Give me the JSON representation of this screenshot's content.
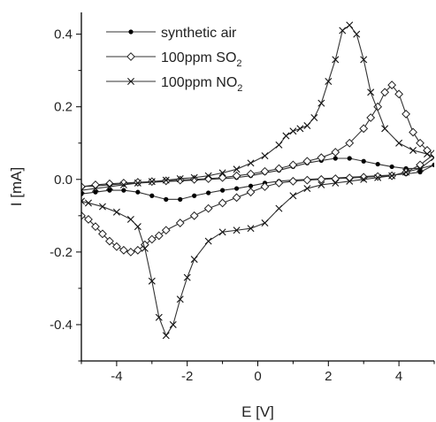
{
  "chart_data": {
    "type": "line",
    "xlabel": "E [V]",
    "ylabel": "I [mA]",
    "xlim": [
      -5,
      5
    ],
    "ylim": [
      -0.5,
      0.46
    ],
    "xticks": [
      -4,
      -2,
      0,
      2,
      4
    ],
    "xtick_labels": [
      "-4",
      "-2",
      "0",
      "2",
      "4"
    ],
    "yticks": [
      -0.4,
      -0.2,
      0.0,
      0.2,
      0.4
    ],
    "ytick_labels": [
      "-0.4",
      "-0.2",
      "0.0",
      "0.2",
      "0.4"
    ],
    "grid": false,
    "legend_position": "top-left",
    "series": [
      {
        "name": "synthetic air",
        "name_main": "synthetic air",
        "name_sub": "",
        "marker": "filled-circle",
        "color": "#000000",
        "x": [
          -5.0,
          -4.6,
          -4.2,
          -3.8,
          -3.4,
          -3.0,
          -2.6,
          -2.2,
          -1.8,
          -1.4,
          -1.0,
          -0.6,
          -0.2,
          0.2,
          0.6,
          1.0,
          1.4,
          1.8,
          2.2,
          2.6,
          3.0,
          3.4,
          3.8,
          4.2,
          4.6,
          5.0,
          4.6,
          4.2,
          3.8,
          3.4,
          3.0,
          2.6,
          2.2,
          1.8,
          1.4,
          1.0,
          0.6,
          0.2,
          -0.2,
          -0.6,
          -1.0,
          -1.4,
          -1.8,
          -2.2,
          -2.6,
          -3.0,
          -3.4,
          -3.8,
          -4.2,
          -4.6,
          -5.0
        ],
        "y": [
          -0.02,
          -0.018,
          -0.015,
          -0.012,
          -0.01,
          -0.008,
          -0.006,
          -0.004,
          -0.002,
          0.0,
          0.002,
          0.005,
          0.01,
          0.018,
          0.025,
          0.035,
          0.045,
          0.052,
          0.058,
          0.058,
          0.05,
          0.042,
          0.035,
          0.03,
          0.03,
          0.04,
          0.02,
          0.015,
          0.012,
          0.01,
          0.008,
          0.006,
          0.004,
          0.002,
          0.0,
          -0.002,
          -0.005,
          -0.01,
          -0.018,
          -0.025,
          -0.03,
          -0.037,
          -0.045,
          -0.055,
          -0.055,
          -0.045,
          -0.035,
          -0.03,
          -0.03,
          -0.035,
          -0.04
        ]
      },
      {
        "name": "100ppm SO2",
        "name_main": "100ppm SO",
        "name_sub": "2",
        "marker": "open-diamond",
        "color": "#000000",
        "x": [
          -5.0,
          -4.6,
          -4.2,
          -3.8,
          -3.4,
          -3.0,
          -2.6,
          -2.2,
          -1.8,
          -1.4,
          -1.0,
          -0.6,
          -0.2,
          0.2,
          0.6,
          1.0,
          1.4,
          1.8,
          2.2,
          2.6,
          3.0,
          3.2,
          3.4,
          3.6,
          3.8,
          4.0,
          4.2,
          4.4,
          4.6,
          4.8,
          5.0,
          4.6,
          4.2,
          3.8,
          3.4,
          3.0,
          2.6,
          2.2,
          1.8,
          1.4,
          1.0,
          0.6,
          0.2,
          -0.2,
          -0.6,
          -1.0,
          -1.4,
          -1.8,
          -2.2,
          -2.6,
          -2.8,
          -3.0,
          -3.2,
          -3.4,
          -3.6,
          -3.8,
          -4.0,
          -4.2,
          -4.4,
          -4.6,
          -4.8,
          -5.0
        ],
        "y": [
          -0.02,
          -0.015,
          -0.012,
          -0.01,
          -0.008,
          -0.006,
          -0.004,
          -0.002,
          0.0,
          0.002,
          0.005,
          0.01,
          0.015,
          0.022,
          0.03,
          0.04,
          0.05,
          0.06,
          0.075,
          0.1,
          0.14,
          0.17,
          0.2,
          0.24,
          0.26,
          0.235,
          0.18,
          0.13,
          0.1,
          0.08,
          0.07,
          0.04,
          0.02,
          0.01,
          0.008,
          0.006,
          0.004,
          0.002,
          0.0,
          -0.002,
          -0.005,
          -0.01,
          -0.02,
          -0.035,
          -0.05,
          -0.065,
          -0.08,
          -0.1,
          -0.12,
          -0.14,
          -0.155,
          -0.165,
          -0.18,
          -0.195,
          -0.2,
          -0.195,
          -0.185,
          -0.17,
          -0.15,
          -0.13,
          -0.11,
          -0.1
        ]
      },
      {
        "name": "100ppm NO2",
        "name_main": "100ppm NO",
        "name_sub": "2",
        "marker": "x-cross",
        "color": "#000000",
        "x": [
          -5.0,
          -4.6,
          -4.2,
          -3.8,
          -3.4,
          -3.0,
          -2.6,
          -2.2,
          -1.8,
          -1.4,
          -1.0,
          -0.6,
          -0.2,
          0.2,
          0.6,
          0.8,
          1.0,
          1.2,
          1.4,
          1.6,
          1.8,
          2.0,
          2.2,
          2.4,
          2.6,
          2.8,
          3.0,
          3.2,
          3.6,
          4.0,
          4.4,
          4.8,
          5.0,
          4.6,
          4.2,
          3.8,
          3.4,
          3.0,
          2.6,
          2.2,
          1.8,
          1.4,
          1.0,
          0.6,
          0.2,
          -0.2,
          -0.6,
          -1.0,
          -1.4,
          -1.8,
          -2.0,
          -2.2,
          -2.4,
          -2.6,
          -2.8,
          -3.0,
          -3.2,
          -3.4,
          -3.6,
          -4.0,
          -4.4,
          -4.8,
          -5.0
        ],
        "y": [
          -0.03,
          -0.025,
          -0.02,
          -0.015,
          -0.01,
          -0.006,
          -0.002,
          0.002,
          0.005,
          0.01,
          0.018,
          0.028,
          0.045,
          0.065,
          0.095,
          0.12,
          0.133,
          0.14,
          0.148,
          0.17,
          0.21,
          0.27,
          0.33,
          0.41,
          0.425,
          0.4,
          0.33,
          0.24,
          0.14,
          0.1,
          0.08,
          0.07,
          0.06,
          0.03,
          0.02,
          0.01,
          0.005,
          0.0,
          -0.005,
          -0.01,
          -0.015,
          -0.025,
          -0.045,
          -0.08,
          -0.12,
          -0.135,
          -0.14,
          -0.145,
          -0.17,
          -0.22,
          -0.27,
          -0.33,
          -0.4,
          -0.43,
          -0.38,
          -0.28,
          -0.19,
          -0.13,
          -0.11,
          -0.09,
          -0.075,
          -0.065,
          -0.06
        ]
      }
    ]
  }
}
